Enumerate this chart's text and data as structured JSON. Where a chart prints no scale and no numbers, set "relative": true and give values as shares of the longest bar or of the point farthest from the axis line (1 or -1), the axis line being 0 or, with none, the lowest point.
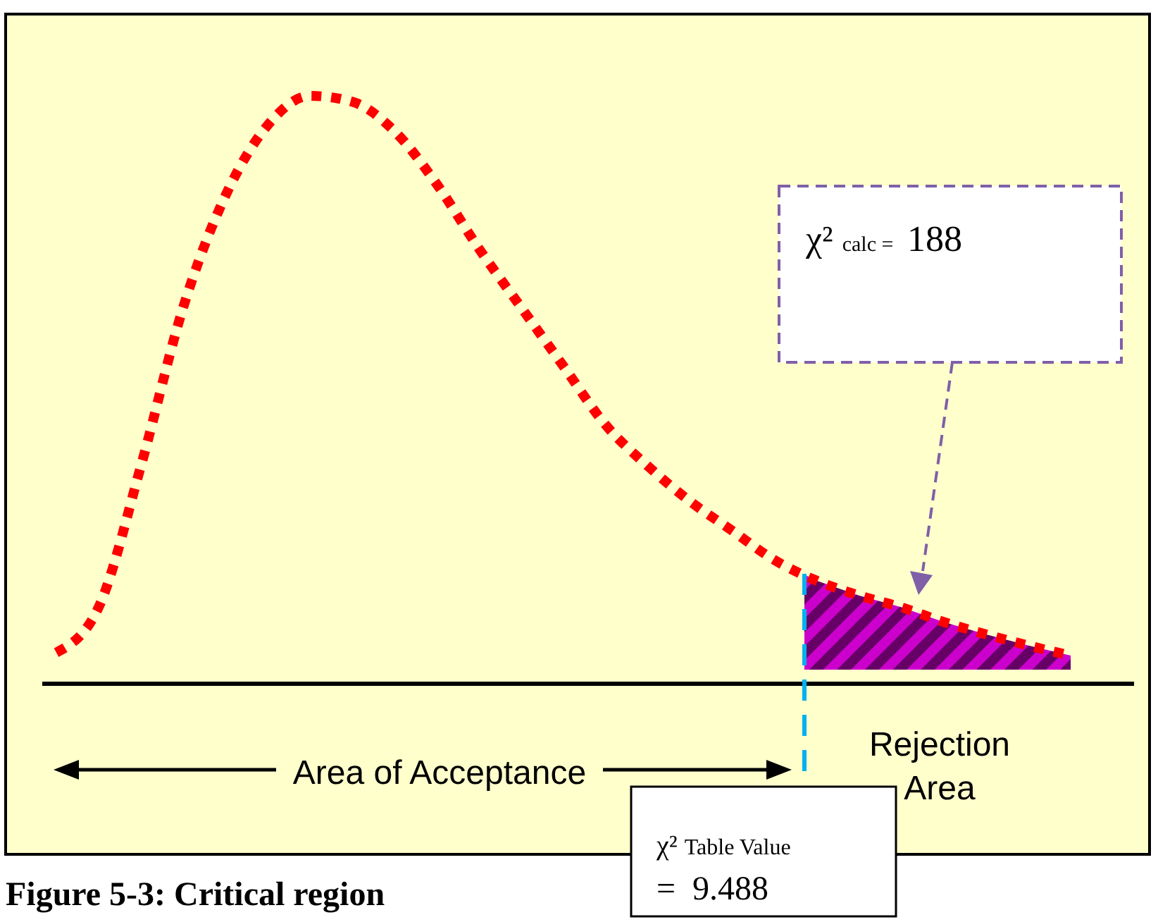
{
  "chart_data": {
    "type": "line",
    "title": "Figure 5-3: Critical region",
    "relative": true,
    "categories": [
      null,
      null,
      null,
      null,
      null,
      null,
      null,
      null,
      null,
      null,
      null,
      null,
      null,
      null,
      null,
      null,
      null,
      null,
      null,
      null,
      null,
      null,
      null,
      null,
      null
    ],
    "series": [
      {
        "color": "#ff0000",
        "values": [
          0.053,
          0.13,
          0.37,
          0.64,
          0.83,
          0.95,
          1.0,
          0.99,
          0.94,
          0.85,
          0.74,
          0.64,
          0.54,
          0.44,
          0.37,
          0.31,
          0.26,
          0.21,
          0.175,
          0.15,
          0.13,
          0.105,
          0.084,
          0.065,
          0.048
        ]
      }
    ],
    "line_style": "dotted",
    "annotations": [
      "χ² calc = 188",
      "Area of Acceptance",
      "Rejection Area",
      "χ² Table Value = 9.488"
    ]
  }
}
